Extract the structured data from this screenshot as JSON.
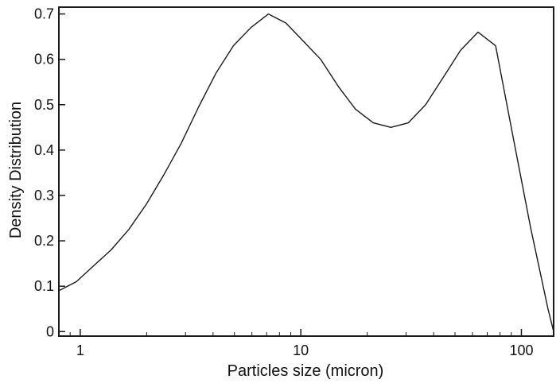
{
  "chart_data": {
    "type": "line",
    "title": "",
    "xlabel": "Particles size (micron)",
    "ylabel": "Density Distribution",
    "x_scale": "log",
    "xlim": [
      0.8,
      140
    ],
    "ylim": [
      -0.01,
      0.715
    ],
    "x_ticks": [
      {
        "value": 1,
        "label": "1"
      },
      {
        "value": 10,
        "label": "10"
      },
      {
        "value": 100,
        "label": "100"
      }
    ],
    "y_ticks": [
      {
        "value": 0,
        "label": "0"
      },
      {
        "value": 0.1,
        "label": "0.1"
      },
      {
        "value": 0.2,
        "label": "0.2"
      },
      {
        "value": 0.3,
        "label": "0.3"
      },
      {
        "value": 0.4,
        "label": "0.4"
      },
      {
        "value": 0.5,
        "label": "0.5"
      },
      {
        "value": 0.6,
        "label": "0.6"
      },
      {
        "value": 0.7,
        "label": "0.7"
      }
    ],
    "grid": false,
    "line_color": "#1a1a1a",
    "series": [
      {
        "x": [
          0.8,
          0.96,
          1.15,
          1.38,
          1.66,
          1.99,
          2.39,
          2.87,
          3.44,
          4.13,
          4.95,
          5.94,
          7.13,
          8.56,
          10.27,
          12.3,
          14.8,
          17.7,
          21.3,
          25.6,
          30.7,
          36.8,
          44.2,
          53.0,
          63.6,
          76.4,
          91.6,
          110.0,
          132.0,
          140.0
        ],
        "y": [
          0.09,
          0.11,
          0.145,
          0.18,
          0.225,
          0.28,
          0.345,
          0.415,
          0.495,
          0.57,
          0.63,
          0.67,
          0.7,
          0.68,
          0.64,
          0.6,
          0.54,
          0.49,
          0.46,
          0.45,
          0.46,
          0.5,
          0.56,
          0.62,
          0.66,
          0.63,
          0.43,
          0.23,
          0.05,
          0.0
        ]
      }
    ]
  }
}
